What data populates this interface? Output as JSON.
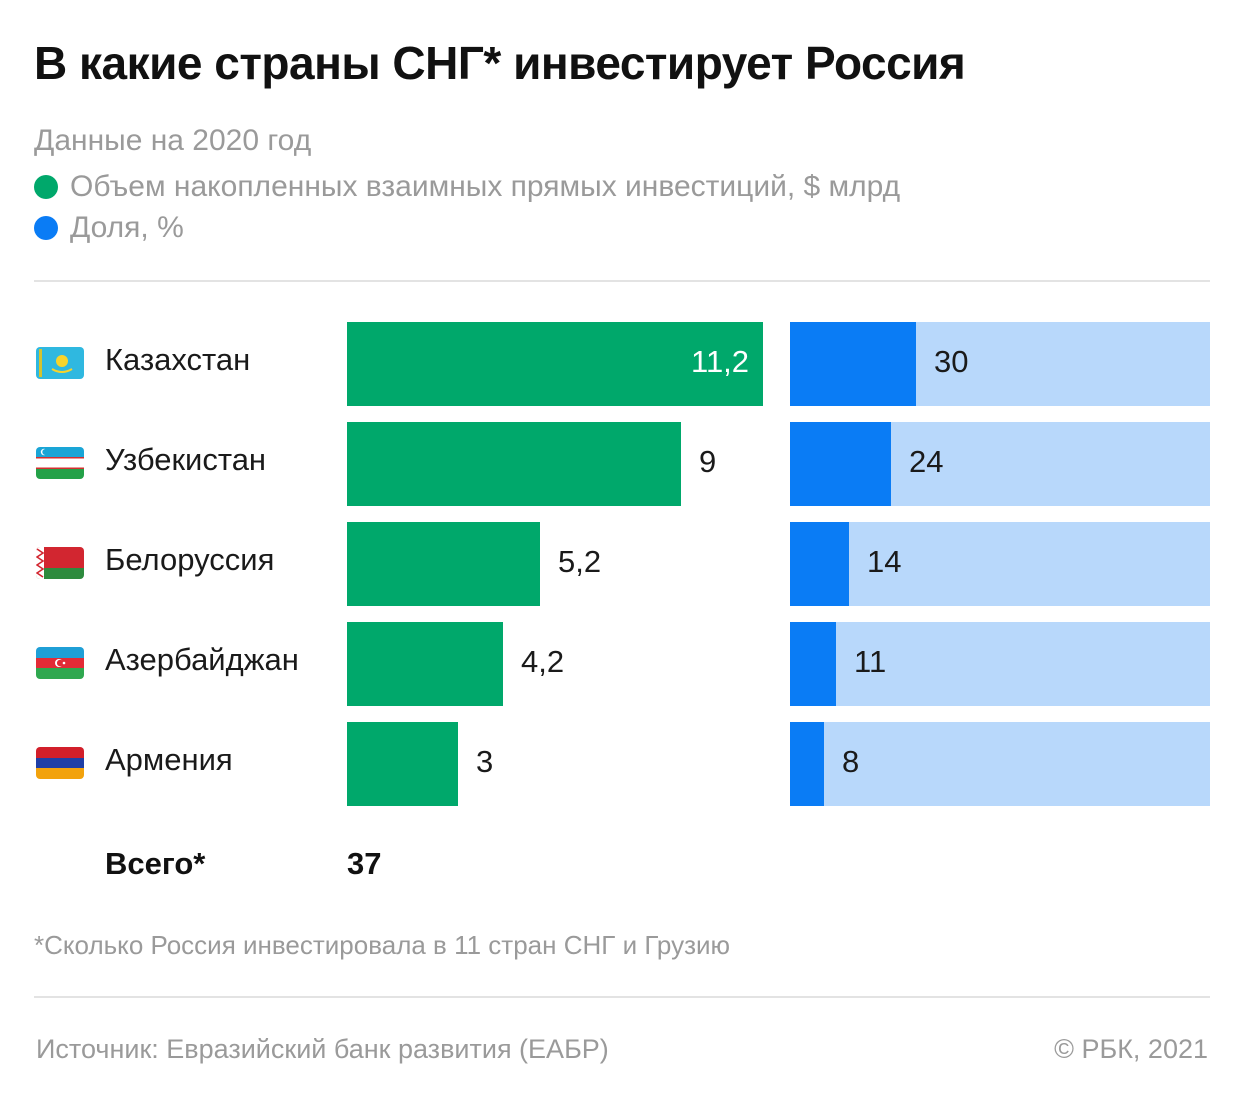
{
  "header": {
    "title": "В какие страны СНГ* инвестирует Россия",
    "subtitle": "Данные на 2020 год"
  },
  "legend": [
    {
      "label": "Объем накопленных взаимных прямых инвестиций, $ млрд",
      "color": "#00a86b"
    },
    {
      "label": "Доля, %",
      "color": "#0a7cf5"
    }
  ],
  "colors": {
    "volume_bar": "#00a86b",
    "share_fill": "#0a7cf5",
    "share_background": "#b8d8fb"
  },
  "chart_data": {
    "type": "bar",
    "orientation": "horizontal",
    "categories": [
      "Казахстан",
      "Узбекистан",
      "Белоруссия",
      "Азербайджан",
      "Армения"
    ],
    "series": [
      {
        "name": "Объем накопленных взаимных прямых инвестиций, $ млрд",
        "values": [
          11.2,
          9,
          5.2,
          4.2,
          3
        ],
        "labels": [
          "11,2",
          "9",
          "5,2",
          "4,2",
          "3"
        ]
      },
      {
        "name": "Доля, %",
        "values": [
          30,
          24,
          14,
          11,
          8
        ],
        "labels": [
          "30",
          "24",
          "14",
          "11",
          "8"
        ]
      }
    ],
    "flags": [
      "kazakhstan-flag-icon",
      "uzbekistan-flag-icon",
      "belarus-flag-icon",
      "azerbaijan-flag-icon",
      "armenia-flag-icon"
    ],
    "volume_xlim": [
      0,
      11.2
    ],
    "share_xlim": [
      0,
      100
    ]
  },
  "total": {
    "label": "Всего*",
    "value": "37"
  },
  "footnote": "*Сколько Россия инвестировала в 11 стран СНГ и Грузию",
  "footer": {
    "source": "Источник: Евразийский банк развития (ЕАБР)",
    "copyright": "©  РБК, 2021"
  }
}
